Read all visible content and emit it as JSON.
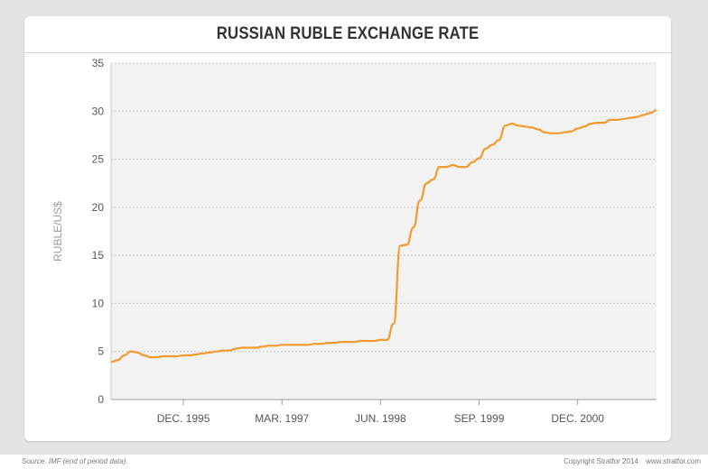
{
  "footer": {
    "source": "Source: IMF (end of period data).",
    "copyright": "Copyright Stratfor 2014",
    "website": "www.stratfor.com"
  },
  "colors": {
    "line": "#f39a2e",
    "plot_bg": "#f2f2f2",
    "grid": "#c8c8c8",
    "axis_text": "#555555",
    "ylabel_text": "#9a9a9a"
  },
  "chart_data": {
    "type": "line",
    "title": "RUSSIAN RUBLE EXCHANGE RATE",
    "xlabel": "",
    "ylabel": "RUBLE/US$",
    "ylim": [
      0,
      35
    ],
    "yticks": [
      0,
      5,
      10,
      15,
      20,
      25,
      30,
      35
    ],
    "grid": true,
    "x_tick_labels": [
      "DEC. 1995",
      "MAR. 1997",
      "JUN. 1998",
      "SEP. 1999",
      "DEC. 2000"
    ],
    "x_tick_dates": [
      "1995-12",
      "1997-03",
      "1998-06",
      "1999-09",
      "2000-12"
    ],
    "x_range": [
      "1995-01",
      "2001-12"
    ],
    "series": [
      {
        "name": "",
        "x": [
          "1995-01",
          "1995-02",
          "1995-03",
          "1995-04",
          "1995-05",
          "1995-06",
          "1995-07",
          "1995-08",
          "1995-09",
          "1995-10",
          "1995-11",
          "1995-12",
          "1996-01",
          "1996-02",
          "1996-03",
          "1996-04",
          "1996-05",
          "1996-06",
          "1996-07",
          "1996-08",
          "1996-09",
          "1996-10",
          "1996-11",
          "1996-12",
          "1997-01",
          "1997-02",
          "1997-03",
          "1997-04",
          "1997-05",
          "1997-06",
          "1997-07",
          "1997-08",
          "1997-09",
          "1997-10",
          "1997-11",
          "1997-12",
          "1998-01",
          "1998-02",
          "1998-03",
          "1998-04",
          "1998-05",
          "1998-06",
          "1998-07",
          "1998-08",
          "1998-09",
          "1998-10",
          "1998-11",
          "1998-12",
          "1999-01",
          "1999-02",
          "1999-03",
          "1999-04",
          "1999-05",
          "1999-06",
          "1999-07",
          "1999-08",
          "1999-09",
          "1999-10",
          "1999-11",
          "1999-12",
          "2000-01",
          "2000-02",
          "2000-03",
          "2000-04",
          "2000-05",
          "2000-06",
          "2000-07",
          "2000-08",
          "2000-09",
          "2000-10",
          "2000-11",
          "2000-12",
          "2001-01",
          "2001-02",
          "2001-03",
          "2001-04",
          "2001-05",
          "2001-06",
          "2001-07",
          "2001-08",
          "2001-09",
          "2001-10",
          "2001-11",
          "2001-12"
        ],
        "y": [
          3.9,
          4.1,
          4.6,
          5.0,
          4.9,
          4.6,
          4.4,
          4.4,
          4.5,
          4.5,
          4.5,
          4.6,
          4.6,
          4.7,
          4.8,
          4.9,
          5.0,
          5.1,
          5.1,
          5.3,
          5.4,
          5.4,
          5.4,
          5.5,
          5.6,
          5.6,
          5.7,
          5.7,
          5.7,
          5.7,
          5.7,
          5.8,
          5.8,
          5.9,
          5.9,
          6.0,
          6.0,
          6.0,
          6.1,
          6.1,
          6.1,
          6.2,
          6.2,
          7.9,
          16.0,
          16.1,
          17.9,
          20.7,
          22.5,
          22.9,
          24.2,
          24.2,
          24.4,
          24.2,
          24.2,
          24.7,
          25.1,
          26.1,
          26.5,
          27.0,
          28.5,
          28.7,
          28.5,
          28.4,
          28.3,
          28.1,
          27.8,
          27.7,
          27.7,
          27.8,
          27.9,
          28.2,
          28.4,
          28.7,
          28.8,
          28.8,
          29.1,
          29.1,
          29.2,
          29.3,
          29.4,
          29.6,
          29.8,
          30.1
        ]
      }
    ]
  }
}
